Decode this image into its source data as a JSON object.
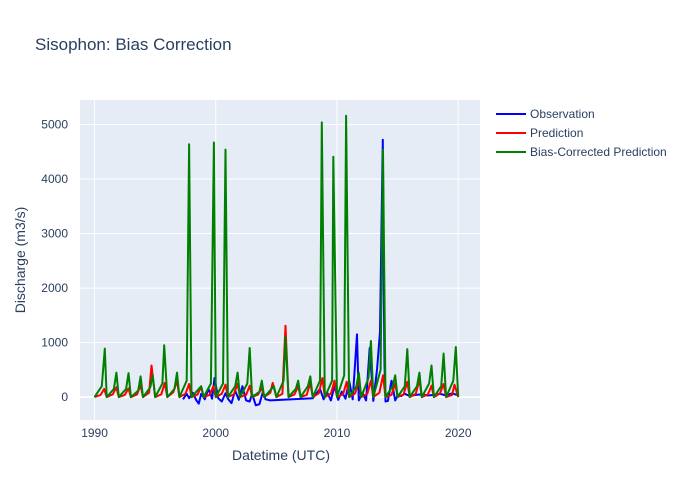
{
  "chart_data": {
    "type": "line",
    "title": "Sisophon: Bias Correction",
    "xlabel": "Datetime (UTC)",
    "ylabel": "Discharge (m3/s)",
    "xlim": [
      1988.8,
      2021.8
    ],
    "ylim": [
      -420,
      5450
    ],
    "x_ticks": [
      1990,
      2000,
      2010,
      2020
    ],
    "y_ticks": [
      0,
      1000,
      2000,
      3000,
      4000,
      5000
    ],
    "grid": true,
    "legend_position": "top-right (outside plot)",
    "series": [
      {
        "name": "Observation",
        "color": "#0000ff",
        "x": [
          1997.3,
          1997.6,
          1997.8,
          1998.1,
          1998.4,
          1998.6,
          1998.8,
          1999.1,
          1999.4,
          1999.7,
          1999.9,
          2000.2,
          2000.5,
          2000.8,
          2001.0,
          2001.3,
          2001.6,
          2001.9,
          2002.2,
          2002.5,
          2002.8,
          2003.0,
          2003.3,
          2003.6,
          2003.9,
          2004.1,
          2004.5,
          2008.0,
          2008.6,
          2008.9,
          2009.2,
          2009.5,
          2009.8,
          2010.1,
          2010.4,
          2010.7,
          2011.0,
          2011.3,
          2011.5,
          2011.65,
          2011.8,
          2012.1,
          2012.4,
          2012.7,
          2013.0,
          2013.3,
          2013.55,
          2013.7,
          2013.78,
          2013.85,
          2013.92,
          2014.0,
          2014.2,
          2014.5,
          2014.8,
          2015.0,
          2015.3,
          2015.6,
          2016.0,
          2016.5,
          2017.0,
          2017.5,
          2018.0,
          2018.5,
          2019.0,
          2019.5,
          2019.9
        ],
        "y": [
          -40,
          60,
          -20,
          80,
          -60,
          -120,
          60,
          -40,
          150,
          -30,
          350,
          -20,
          -80,
          70,
          -30,
          -110,
          120,
          -50,
          200,
          -60,
          -80,
          60,
          -150,
          -130,
          100,
          -40,
          -60,
          -20,
          150,
          -40,
          80,
          -60,
          200,
          -50,
          100,
          -30,
          300,
          -40,
          650,
          1150,
          -60,
          80,
          -60,
          900,
          -70,
          500,
          1200,
          3500,
          4720,
          2300,
          600,
          -80,
          -70,
          300,
          -60,
          30,
          20,
          60,
          20,
          40,
          50,
          30,
          40,
          60,
          30,
          70,
          40
        ]
      },
      {
        "name": "Prediction",
        "color": "#ff0000",
        "x": [
          1990.0,
          1990.5,
          1990.8,
          1991.0,
          1991.5,
          1991.8,
          1992.0,
          1992.5,
          1992.8,
          1993.0,
          1993.5,
          1993.8,
          1994.0,
          1994.5,
          1994.7,
          1995.0,
          1995.5,
          1995.8,
          1996.0,
          1996.5,
          1996.8,
          1997.0,
          1997.5,
          1997.8,
          1998.0,
          1998.5,
          1998.8,
          1999.0,
          1999.5,
          1999.8,
          2000.0,
          2000.5,
          2000.8,
          2001.0,
          2001.5,
          2001.8,
          2002.0,
          2002.5,
          2002.8,
          2003.0,
          2003.5,
          2003.8,
          2004.0,
          2004.5,
          2004.7,
          2005.0,
          2005.5,
          2005.75,
          2006.0,
          2006.5,
          2006.8,
          2007.0,
          2007.5,
          2007.8,
          2008.0,
          2008.5,
          2008.8,
          2009.0,
          2009.5,
          2009.8,
          2010.0,
          2010.5,
          2010.8,
          2011.0,
          2011.5,
          2011.8,
          2012.0,
          2012.5,
          2012.8,
          2013.0,
          2013.5,
          2013.8,
          2014.0,
          2014.5,
          2014.8,
          2015.0,
          2015.5,
          2015.8,
          2016.0,
          2016.5,
          2016.8,
          2017.0,
          2017.5,
          2017.8,
          2018.0,
          2018.5,
          2018.8,
          2019.0,
          2019.5,
          2019.7,
          2020.0
        ],
        "y": [
          0,
          40,
          150,
          0,
          50,
          180,
          0,
          40,
          160,
          0,
          50,
          220,
          0,
          80,
          580,
          0,
          50,
          260,
          0,
          90,
          300,
          0,
          60,
          240,
          0,
          50,
          190,
          0,
          40,
          200,
          0,
          60,
          230,
          0,
          50,
          250,
          0,
          40,
          210,
          0,
          50,
          170,
          0,
          80,
          260,
          0,
          60,
          1310,
          0,
          50,
          200,
          0,
          40,
          260,
          0,
          70,
          350,
          0,
          60,
          300,
          0,
          50,
          280,
          0,
          70,
          320,
          0,
          60,
          300,
          0,
          80,
          400,
          0,
          40,
          250,
          0,
          50,
          280,
          0,
          60,
          320,
          0,
          50,
          210,
          0,
          70,
          240,
          0,
          40,
          230,
          0
        ]
      },
      {
        "name": "Bias-Corrected Prediction",
        "color": "#008000",
        "x": [
          1990.0,
          1990.6,
          1990.85,
          1991.0,
          1991.6,
          1991.8,
          1992.0,
          1992.6,
          1992.8,
          1993.0,
          1993.6,
          1993.8,
          1994.0,
          1994.6,
          1994.8,
          1995.0,
          1995.6,
          1995.75,
          1996.0,
          1996.6,
          1996.8,
          1997.0,
          1997.6,
          1997.8,
          1998.0,
          1998.6,
          1998.8,
          1999.0,
          1999.6,
          1999.85,
          2000.0,
          2000.6,
          2000.8,
          2001.0,
          2001.6,
          2001.8,
          2002.0,
          2002.6,
          2002.8,
          2003.0,
          2003.6,
          2003.8,
          2004.0,
          2004.6,
          2004.8,
          2005.0,
          2005.6,
          2005.75,
          2006.0,
          2006.6,
          2006.8,
          2007.0,
          2007.6,
          2007.8,
          2008.0,
          2008.6,
          2008.75,
          2009.0,
          2009.6,
          2009.7,
          2010.0,
          2010.6,
          2010.75,
          2011.0,
          2011.6,
          2011.8,
          2012.0,
          2012.6,
          2012.8,
          2013.0,
          2013.6,
          2013.8,
          2014.0,
          2014.6,
          2014.8,
          2015.0,
          2015.6,
          2015.8,
          2016.0,
          2016.6,
          2016.8,
          2017.0,
          2017.6,
          2017.8,
          2018.0,
          2018.6,
          2018.8,
          2019.0,
          2019.6,
          2019.8,
          2020.0
        ],
        "y": [
          0,
          200,
          890,
          0,
          150,
          450,
          0,
          150,
          440,
          0,
          120,
          380,
          0,
          180,
          400,
          0,
          250,
          950,
          0,
          150,
          450,
          0,
          300,
          4640,
          0,
          150,
          200,
          0,
          250,
          4670,
          0,
          250,
          4540,
          0,
          200,
          450,
          0,
          250,
          900,
          0,
          100,
          300,
          0,
          150,
          200,
          0,
          300,
          1100,
          0,
          150,
          300,
          0,
          200,
          380,
          0,
          300,
          5040,
          0,
          300,
          4410,
          0,
          400,
          5160,
          0,
          200,
          450,
          0,
          350,
          1030,
          0,
          500,
          4540,
          0,
          200,
          400,
          0,
          200,
          880,
          0,
          200,
          450,
          0,
          250,
          580,
          0,
          200,
          800,
          0,
          300,
          920,
          0
        ]
      }
    ]
  }
}
